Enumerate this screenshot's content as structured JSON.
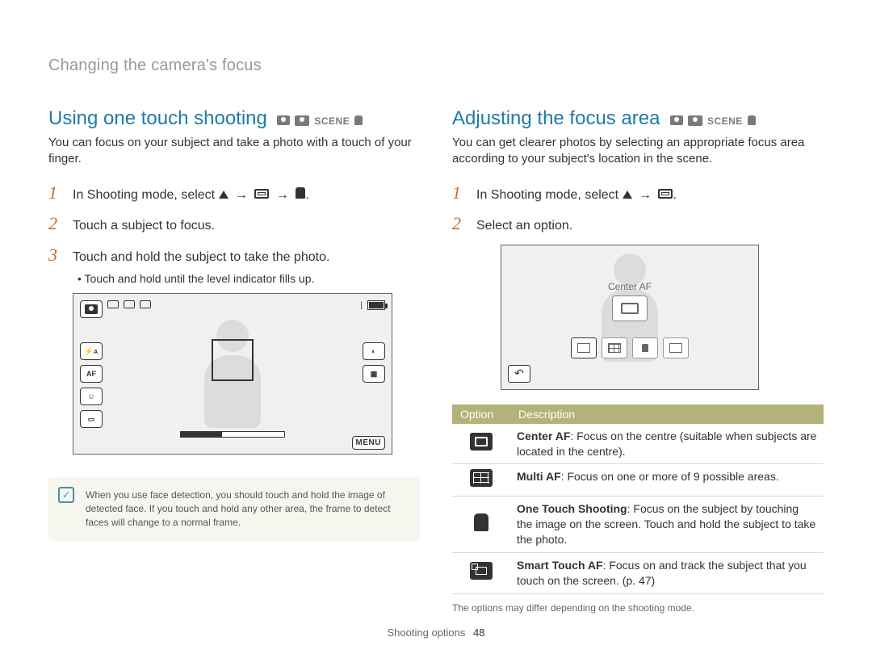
{
  "breadcrumb": "Changing the camera's focus",
  "mode_icons": {
    "scene_label": "SCENE"
  },
  "left": {
    "title": "Using one touch shooting",
    "intro": "You can focus on your subject and take a photo with a touch of your finger.",
    "steps": [
      {
        "num": "1",
        "prefix": "In Shooting mode, select ",
        "has_icons": true
      },
      {
        "num": "2",
        "text": "Touch a subject to focus."
      },
      {
        "num": "3",
        "text": "Touch and hold the subject to take the photo."
      }
    ],
    "sub_bullet": "Touch and hold until the level indicator fills up.",
    "ss": {
      "flash": "A",
      "af": "AF",
      "menu": "MENU"
    },
    "note": "When you use face detection, you should touch and hold the image of detected face. If you touch and hold any other area, the frame to detect faces will change to a normal frame.",
    "note_icon": "✓"
  },
  "right": {
    "title": "Adjusting the focus area",
    "intro": "You can get clearer photos by selecting an appropriate focus area according to your subject's location in the scene.",
    "steps": [
      {
        "num": "1",
        "prefix": "In Shooting mode, select ",
        "has_icons": true
      },
      {
        "num": "2",
        "text": "Select an option."
      }
    ],
    "ss": {
      "label": "Center AF",
      "back": "↶"
    },
    "table": {
      "headers": [
        "Option",
        "Description"
      ],
      "rows": [
        {
          "icon": "center",
          "bold": "Center AF",
          "rest": ": Focus on the centre (suitable when subjects are located in the centre)."
        },
        {
          "icon": "multi",
          "bold": "Multi AF",
          "rest": ": Focus on one or more of 9 possible areas."
        },
        {
          "icon": "touch",
          "bold": "One Touch Shooting",
          "rest": ": Focus on the subject by touching the image on the screen. Touch and hold the subject to take the photo."
        },
        {
          "icon": "smart",
          "bold": "Smart Touch AF",
          "rest": ": Focus on and track the subject that you touch on the screen. (p. 47)"
        }
      ]
    },
    "footnote": "The options may differ depending on the shooting mode."
  },
  "footer": {
    "section": "Shooting options",
    "page": "48"
  }
}
